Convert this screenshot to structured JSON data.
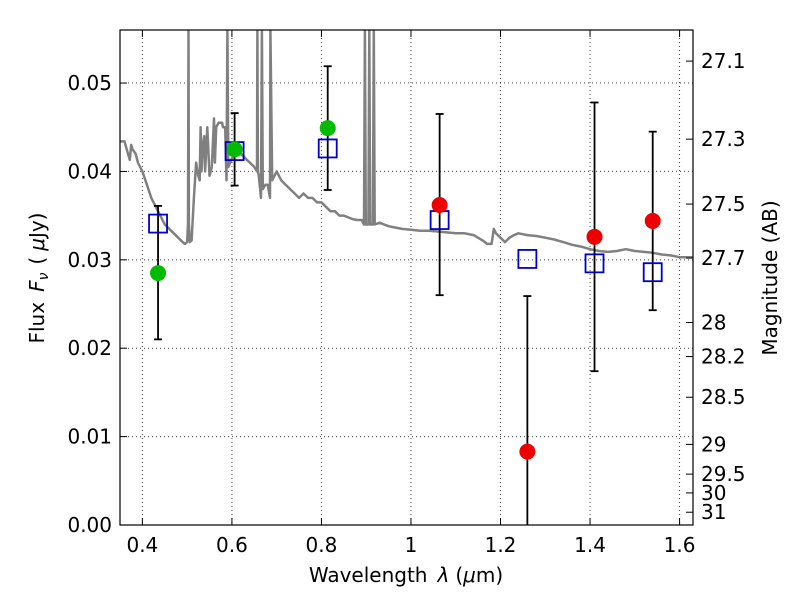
{
  "chart_data": {
    "type": "scatter",
    "xlabel": "Wavelength",
    "xlabel_symbol": "λ",
    "xlabel_unit_prefix": "(",
    "xlabel_unit_mu": "μ",
    "xlabel_unit_rest": "m)",
    "ylabel": "Flux",
    "ylabel_symbol_main": "F",
    "ylabel_symbol_sub": "ν",
    "ylabel_unit_open": "(",
    "ylabel_unit_mu": "μ",
    "ylabel_unit_rest": "Jy)",
    "y2label": "Magnitude (AB)",
    "xlim": [
      0.35,
      1.63
    ],
    "ylim": [
      0.0,
      0.056
    ],
    "grid": true,
    "x_ticks": [
      {
        "value": 0.4,
        "label": "0.4"
      },
      {
        "value": 0.6,
        "label": "0.6"
      },
      {
        "value": 0.8,
        "label": "0.8"
      },
      {
        "value": 1.0,
        "label": "1"
      },
      {
        "value": 1.2,
        "label": "1.2"
      },
      {
        "value": 1.4,
        "label": "1.4"
      },
      {
        "value": 1.6,
        "label": "1.6"
      }
    ],
    "y_ticks": [
      {
        "value": 0.0,
        "label": "0.00"
      },
      {
        "value": 0.01,
        "label": "0.01"
      },
      {
        "value": 0.02,
        "label": "0.02"
      },
      {
        "value": 0.03,
        "label": "0.03"
      },
      {
        "value": 0.04,
        "label": "0.04"
      },
      {
        "value": 0.05,
        "label": "0.05"
      }
    ],
    "y2_ticks": [
      {
        "mag": 27.1,
        "label": "27.1"
      },
      {
        "mag": 27.3,
        "label": "27.3"
      },
      {
        "mag": 27.5,
        "label": "27.5"
      },
      {
        "mag": 27.7,
        "label": "27.7"
      },
      {
        "mag": 28,
        "label": "28"
      },
      {
        "mag": 28.2,
        "label": "28.2"
      },
      {
        "mag": 28.5,
        "label": "28.5"
      },
      {
        "mag": 29,
        "label": "29"
      },
      {
        "mag": 29.5,
        "label": "29.5"
      },
      {
        "mag": 30,
        "label": "30"
      },
      {
        "mag": 31,
        "label": "31"
      }
    ],
    "colors": {
      "spectrum": "#808080",
      "green": "#00bb00",
      "red": "#ee0000",
      "square": "#0000cc",
      "errorbar": "#000000"
    },
    "series": [
      {
        "kind": "observed-green",
        "points": [
          {
            "x": 0.435,
            "y": 0.0285,
            "ylo": 0.021,
            "yhi": 0.0361
          },
          {
            "x": 0.606,
            "y": 0.0425,
            "ylo": 0.0384,
            "yhi": 0.0466
          },
          {
            "x": 0.814,
            "y": 0.0449,
            "ylo": 0.0379,
            "yhi": 0.0519
          }
        ]
      },
      {
        "kind": "observed-red",
        "points": [
          {
            "x": 1.064,
            "y": 0.0362,
            "ylo": 0.026,
            "yhi": 0.0465
          },
          {
            "x": 1.26,
            "y": 0.0083,
            "ylo": 0.0,
            "yhi": 0.0259
          },
          {
            "x": 1.41,
            "y": 0.0326,
            "ylo": 0.0174,
            "yhi": 0.0478
          },
          {
            "x": 1.54,
            "y": 0.0344,
            "ylo": 0.0243,
            "yhi": 0.0445
          }
        ]
      },
      {
        "kind": "model-squares",
        "points": [
          {
            "x": 0.435,
            "y": 0.0341
          },
          {
            "x": 0.606,
            "y": 0.0423
          },
          {
            "x": 0.814,
            "y": 0.0426
          },
          {
            "x": 1.064,
            "y": 0.0345
          },
          {
            "x": 1.26,
            "y": 0.0301
          },
          {
            "x": 1.41,
            "y": 0.0296
          },
          {
            "x": 1.54,
            "y": 0.0286
          }
        ]
      }
    ],
    "spectrum": [
      [
        0.35,
        0.0434
      ],
      [
        0.36,
        0.0434
      ],
      [
        0.365,
        0.0425
      ],
      [
        0.372,
        0.0413
      ],
      [
        0.375,
        0.043
      ],
      [
        0.378,
        0.0425
      ],
      [
        0.385,
        0.042
      ],
      [
        0.39,
        0.041
      ],
      [
        0.395,
        0.0405
      ],
      [
        0.4,
        0.04
      ],
      [
        0.41,
        0.0385
      ],
      [
        0.42,
        0.037
      ],
      [
        0.43,
        0.036
      ],
      [
        0.44,
        0.035
      ],
      [
        0.445,
        0.0345
      ],
      [
        0.45,
        0.034
      ],
      [
        0.46,
        0.0335
      ],
      [
        0.47,
        0.033
      ],
      [
        0.48,
        0.0325
      ],
      [
        0.49,
        0.032
      ],
      [
        0.495,
        0.0318
      ],
      [
        0.5,
        0.032
      ],
      [
        0.502,
        0.034
      ],
      [
        0.503,
        0.056
      ],
      [
        0.504,
        0.034
      ],
      [
        0.506,
        0.032
      ],
      [
        0.51,
        0.0322
      ],
      [
        0.515,
        0.037
      ],
      [
        0.52,
        0.041
      ],
      [
        0.525,
        0.0395
      ],
      [
        0.528,
        0.039
      ],
      [
        0.53,
        0.045
      ],
      [
        0.532,
        0.04
      ],
      [
        0.535,
        0.043
      ],
      [
        0.538,
        0.044
      ],
      [
        0.54,
        0.04
      ],
      [
        0.545,
        0.045
      ],
      [
        0.55,
        0.0395
      ],
      [
        0.555,
        0.0405
      ],
      [
        0.56,
        0.046
      ],
      [
        0.562,
        0.041
      ],
      [
        0.565,
        0.045
      ],
      [
        0.57,
        0.0455
      ],
      [
        0.578,
        0.0455
      ],
      [
        0.58,
        0.045
      ],
      [
        0.585,
        0.045
      ],
      [
        0.588,
        0.039
      ],
      [
        0.59,
        0.056
      ],
      [
        0.592,
        0.0405
      ],
      [
        0.6,
        0.0415
      ],
      [
        0.61,
        0.0418
      ],
      [
        0.62,
        0.042
      ],
      [
        0.63,
        0.0415
      ],
      [
        0.64,
        0.041
      ],
      [
        0.65,
        0.0405
      ],
      [
        0.656,
        0.04
      ],
      [
        0.657,
        0.056
      ],
      [
        0.658,
        0.04
      ],
      [
        0.66,
        0.0395
      ],
      [
        0.665,
        0.037
      ],
      [
        0.667,
        0.056
      ],
      [
        0.669,
        0.038
      ],
      [
        0.675,
        0.0385
      ],
      [
        0.68,
        0.0385
      ],
      [
        0.685,
        0.037
      ],
      [
        0.686,
        0.056
      ],
      [
        0.69,
        0.039
      ],
      [
        0.7,
        0.04
      ],
      [
        0.71,
        0.039
      ],
      [
        0.72,
        0.0385
      ],
      [
        0.73,
        0.038
      ],
      [
        0.74,
        0.0375
      ],
      [
        0.75,
        0.037
      ],
      [
        0.76,
        0.0375
      ],
      [
        0.77,
        0.037
      ],
      [
        0.78,
        0.037
      ],
      [
        0.79,
        0.0365
      ],
      [
        0.8,
        0.0365
      ],
      [
        0.81,
        0.036
      ],
      [
        0.82,
        0.0355
      ],
      [
        0.83,
        0.0355
      ],
      [
        0.84,
        0.035
      ],
      [
        0.85,
        0.035
      ],
      [
        0.86,
        0.0348
      ],
      [
        0.87,
        0.0346
      ],
      [
        0.88,
        0.0345
      ],
      [
        0.89,
        0.0345
      ],
      [
        0.895,
        0.034
      ],
      [
        0.897,
        0.056
      ],
      [
        0.899,
        0.034
      ],
      [
        0.905,
        0.034
      ],
      [
        0.907,
        0.056
      ],
      [
        0.909,
        0.034
      ],
      [
        0.915,
        0.034
      ],
      [
        0.917,
        0.056
      ],
      [
        0.919,
        0.034
      ],
      [
        0.93,
        0.0342
      ],
      [
        0.94,
        0.034
      ],
      [
        0.95,
        0.0338
      ],
      [
        0.96,
        0.0337
      ],
      [
        0.97,
        0.0336
      ],
      [
        0.98,
        0.0335
      ],
      [
        1.0,
        0.0334
      ],
      [
        1.02,
        0.0333
      ],
      [
        1.04,
        0.0333
      ],
      [
        1.06,
        0.0332
      ],
      [
        1.08,
        0.0331
      ],
      [
        1.1,
        0.033
      ],
      [
        1.12,
        0.033
      ],
      [
        1.14,
        0.0328
      ],
      [
        1.16,
        0.0322
      ],
      [
        1.17,
        0.0318
      ],
      [
        1.18,
        0.0318
      ],
      [
        1.185,
        0.0335
      ],
      [
        1.19,
        0.033
      ],
      [
        1.2,
        0.0325
      ],
      [
        1.21,
        0.032
      ],
      [
        1.22,
        0.0325
      ],
      [
        1.23,
        0.0328
      ],
      [
        1.24,
        0.033
      ],
      [
        1.26,
        0.0328
      ],
      [
        1.28,
        0.0327
      ],
      [
        1.3,
        0.0325
      ],
      [
        1.32,
        0.0323
      ],
      [
        1.34,
        0.032
      ],
      [
        1.36,
        0.0317
      ],
      [
        1.38,
        0.0315
      ],
      [
        1.4,
        0.0312
      ],
      [
        1.42,
        0.031
      ],
      [
        1.44,
        0.0309
      ],
      [
        1.46,
        0.031
      ],
      [
        1.48,
        0.0312
      ],
      [
        1.5,
        0.031
      ],
      [
        1.52,
        0.0309
      ],
      [
        1.54,
        0.0308
      ],
      [
        1.56,
        0.0306
      ],
      [
        1.58,
        0.0305
      ],
      [
        1.6,
        0.0303
      ],
      [
        1.63,
        0.0303
      ]
    ]
  }
}
